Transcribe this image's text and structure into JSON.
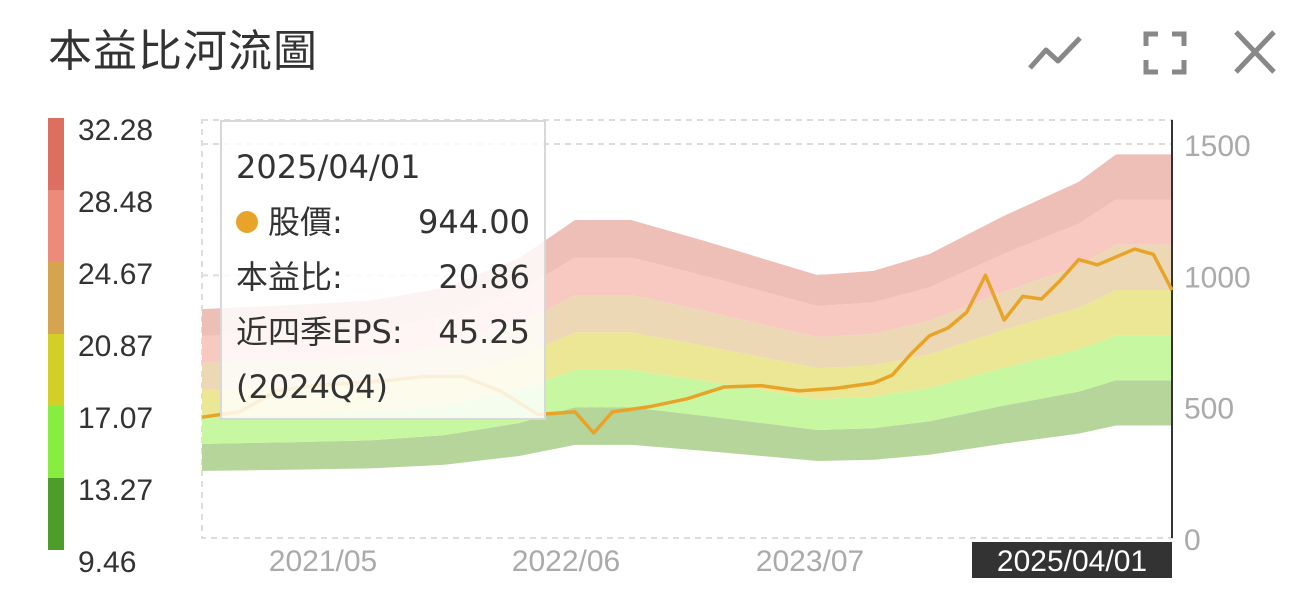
{
  "header": {
    "title": "本益比河流圖",
    "icons": {
      "line_mode": "line-chart-icon",
      "fullscreen": "fullscreen-icon",
      "close": "close-icon"
    }
  },
  "tooltip": {
    "date": "2025/04/01",
    "price_label": "股價:",
    "price_value": "944.00",
    "pe_label": "本益比:",
    "pe_value": "20.86",
    "eps_label": "近四季EPS:",
    "eps_value": "45.25",
    "eps_period": "(2024Q4)"
  },
  "chart_data": {
    "type": "area",
    "colors": {
      "price_line": "#e8a428",
      "bands": [
        "#b5d59a",
        "#c8f7a1",
        "#ece795",
        "#ecd8b4",
        "#f7c9c0",
        "#eebfb6"
      ],
      "legend": [
        "#4e9d2b",
        "#87ee41",
        "#d2cf27",
        "#d6a34f",
        "#ec8b7c",
        "#dc6f5f"
      ]
    },
    "x_ticks": [
      "2021/05",
      "2022/06",
      "2023/07"
    ],
    "x_highlight": "2025/04/01",
    "y_right": {
      "ticks": [
        "0",
        "500",
        "1000",
        "1500"
      ],
      "range": [
        0,
        1500
      ]
    },
    "pe_levels": [
      "32.28",
      "28.48",
      "24.67",
      "20.87",
      "17.07",
      "13.27",
      "9.46"
    ],
    "eps_series": {
      "x": [
        "2020/12",
        "2021/05",
        "2021/09",
        "2022/01",
        "2022/05",
        "2022/08",
        "2022/11",
        "2023/03",
        "2023/06",
        "2023/09",
        "2023/12",
        "2024/03",
        "2024/07",
        "2024/11",
        "2025/01",
        "2025/04"
      ],
      "values": [
        27.0,
        27.5,
        28.0,
        29.5,
        33.0,
        37.5,
        37.5,
        35.0,
        33.0,
        31.0,
        31.5,
        33.5,
        38.0,
        42.0,
        45.25,
        45.25
      ]
    },
    "price_series": {
      "x": [
        "2020/12",
        "2021/02",
        "2021/04",
        "2021/06",
        "2021/08",
        "2021/10",
        "2021/12",
        "2022/02",
        "2022/04",
        "2022/06",
        "2022/08",
        "2022/09",
        "2022/10",
        "2022/12",
        "2023/02",
        "2023/04",
        "2023/06",
        "2023/08",
        "2023/10",
        "2023/12",
        "2024/01",
        "2024/02",
        "2024/03",
        "2024/04",
        "2024/05",
        "2024/06",
        "2024/07",
        "2024/08",
        "2024/09",
        "2024/10",
        "2024/11",
        "2024/12",
        "2025/01",
        "2025/02",
        "2025/03",
        "2025/04"
      ],
      "values": [
        460,
        480,
        560,
        580,
        590,
        600,
        615,
        615,
        560,
        470,
        480,
        400,
        480,
        500,
        530,
        575,
        580,
        560,
        570,
        590,
        620,
        700,
        770,
        800,
        860,
        1000,
        830,
        920,
        910,
        980,
        1060,
        1040,
        1070,
        1100,
        1080,
        944
      ]
    }
  }
}
